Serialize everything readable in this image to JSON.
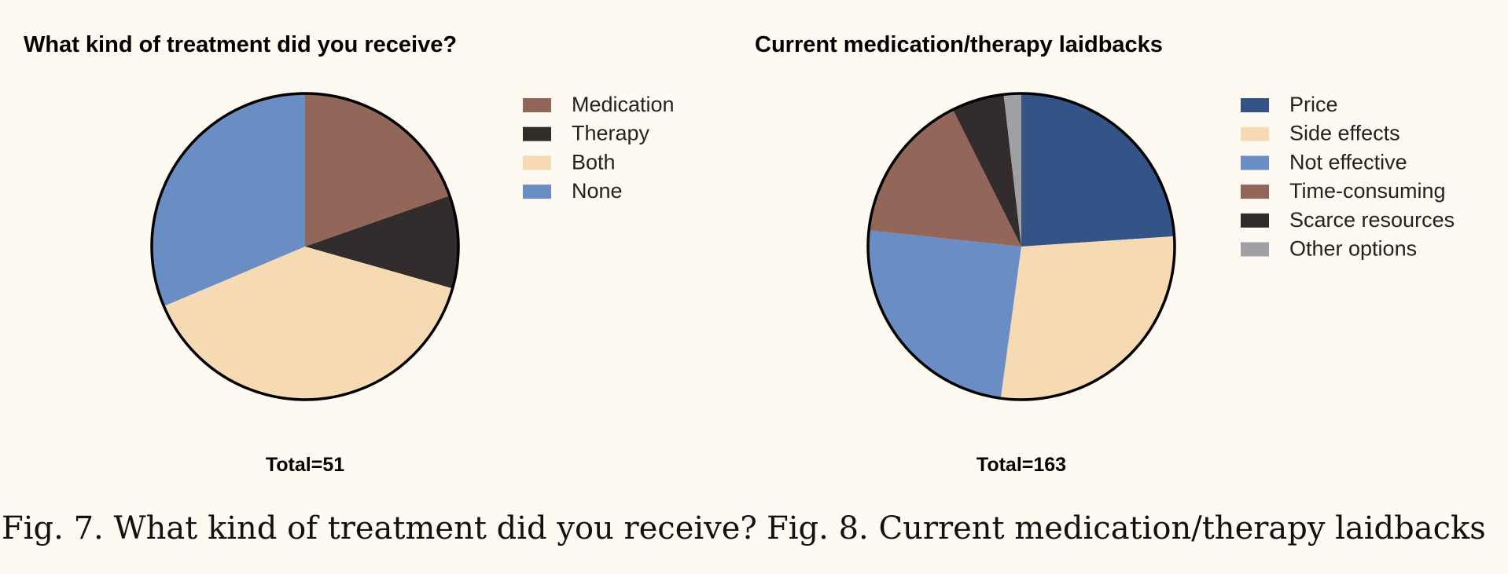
{
  "chart_data": [
    {
      "type": "pie",
      "title": "What kind of treatment did you receive?",
      "categories": [
        "Medication",
        "Therapy",
        "Both",
        "None"
      ],
      "values": [
        10,
        5,
        20,
        16
      ],
      "colors": [
        "#93665a",
        "#322c2c",
        "#f5dab3",
        "#6a8ec4"
      ],
      "total_label": "Total=51",
      "caption": "Fig. 7. What kind of treatment did you receive?",
      "legend_position": "right",
      "start": "top, clockwise"
    },
    {
      "type": "pie",
      "title": "Current medication/therapy laidbacks",
      "categories": [
        "Price",
        "Side effects",
        "Not effective",
        "Time-consuming",
        "Scarce resources",
        "Other options"
      ],
      "values": [
        39,
        46,
        40,
        26,
        9,
        3
      ],
      "colors": [
        "#345488",
        "#f5dab3",
        "#6a8ec4",
        "#93665a",
        "#322c2c",
        "#9f9fa4"
      ],
      "total_label": "Total=163",
      "caption": "Fig. 8. Current medication/therapy laidbacks",
      "legend_position": "right",
      "start": "top, clockwise"
    }
  ]
}
